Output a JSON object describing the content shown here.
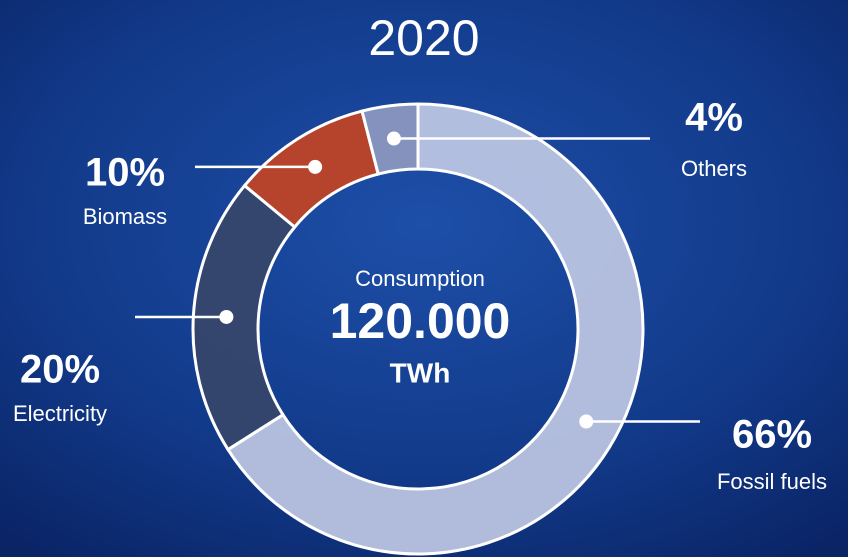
{
  "chart_data": {
    "type": "donut",
    "title": "2020",
    "center_label": "Consumption",
    "center_value": "120.000",
    "center_unit": "TWh",
    "categories": [
      "Fossil fuels",
      "Electricity",
      "Biomass",
      "Others"
    ],
    "values": [
      66,
      20,
      10,
      4
    ],
    "value_labels": [
      "66%",
      "20%",
      "10%",
      "4%"
    ],
    "colors": [
      "#c3cbe6",
      "#36466b",
      "#bf4526",
      "#8a97bf"
    ]
  }
}
